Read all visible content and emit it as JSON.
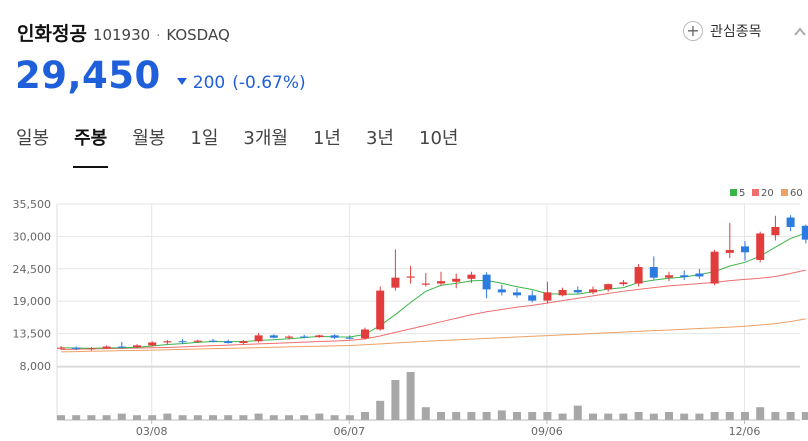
{
  "stock": {
    "name": "인화정공",
    "code": "101930",
    "separator": "·",
    "market": "KOSDAQ",
    "price": "29,450",
    "change": "200",
    "change_rate": "(-0.67%)",
    "direction": "down"
  },
  "watchlist": {
    "icon": "plus-icon",
    "label": "관심종목"
  },
  "expand_icon": "chevron-up-icon",
  "tabs": [
    {
      "label": "일봉",
      "active": false
    },
    {
      "label": "주봉",
      "active": true
    },
    {
      "label": "월봉",
      "active": false
    },
    {
      "label": "1일",
      "active": false
    },
    {
      "label": "3개월",
      "active": false
    },
    {
      "label": "1년",
      "active": false
    },
    {
      "label": "3년",
      "active": false
    },
    {
      "label": "10년",
      "active": false
    }
  ],
  "colors": {
    "up": "#e23d3d",
    "down": "#2b7be0",
    "ma5": "#3bb54a",
    "ma20": "#ef6e6e",
    "ma60": "#f0a064",
    "volume": "#a7a7a7",
    "grid": "#e6e6e6",
    "price": "#1f5fd9"
  },
  "chart_data": {
    "type": "candlestick",
    "y_ticks": [
      "35,500",
      "30,000",
      "24,500",
      "19,000",
      "13,500",
      "8,000"
    ],
    "ylim": [
      8000,
      35500
    ],
    "x_ticks": [
      {
        "label": "03/08",
        "index": 6
      },
      {
        "label": "06/07",
        "index": 19
      },
      {
        "label": "09/06",
        "index": 32
      },
      {
        "label": "12/06",
        "index": 45
      }
    ],
    "legend": [
      {
        "label": "5",
        "color": "#3bb54a"
      },
      {
        "label": "20",
        "color": "#ef6e6e"
      },
      {
        "label": "60",
        "color": "#f0a064"
      }
    ],
    "candles": [
      {
        "o": 11000,
        "h": 11400,
        "l": 10800,
        "c": 11100
      },
      {
        "o": 11100,
        "h": 11300,
        "l": 10700,
        "c": 10900
      },
      {
        "o": 10900,
        "h": 11200,
        "l": 10600,
        "c": 11000
      },
      {
        "o": 11000,
        "h": 11500,
        "l": 10900,
        "c": 11300
      },
      {
        "o": 11300,
        "h": 12100,
        "l": 11000,
        "c": 11200
      },
      {
        "o": 11200,
        "h": 11700,
        "l": 11000,
        "c": 11500
      },
      {
        "o": 11500,
        "h": 12200,
        "l": 11300,
        "c": 12000
      },
      {
        "o": 12000,
        "h": 12400,
        "l": 11700,
        "c": 12200
      },
      {
        "o": 12200,
        "h": 12600,
        "l": 11800,
        "c": 12100
      },
      {
        "o": 12100,
        "h": 12500,
        "l": 11900,
        "c": 12300
      },
      {
        "o": 12300,
        "h": 12600,
        "l": 12000,
        "c": 12200
      },
      {
        "o": 12200,
        "h": 12500,
        "l": 11800,
        "c": 11900
      },
      {
        "o": 11900,
        "h": 12400,
        "l": 11700,
        "c": 12200
      },
      {
        "o": 12200,
        "h": 13600,
        "l": 12000,
        "c": 13200
      },
      {
        "o": 13200,
        "h": 13400,
        "l": 12700,
        "c": 12800
      },
      {
        "o": 12800,
        "h": 13200,
        "l": 12500,
        "c": 13000
      },
      {
        "o": 13000,
        "h": 13300,
        "l": 12700,
        "c": 12900
      },
      {
        "o": 12900,
        "h": 13300,
        "l": 12800,
        "c": 13200
      },
      {
        "o": 13200,
        "h": 13400,
        "l": 12600,
        "c": 12800
      },
      {
        "o": 12800,
        "h": 13200,
        "l": 12500,
        "c": 12700
      },
      {
        "o": 12700,
        "h": 14500,
        "l": 12500,
        "c": 14200
      },
      {
        "o": 14200,
        "h": 21500,
        "l": 14000,
        "c": 20800
      },
      {
        "o": 21300,
        "h": 27800,
        "l": 20800,
        "c": 23000
      },
      {
        "o": 23000,
        "h": 25000,
        "l": 22000,
        "c": 23200
      },
      {
        "o": 21800,
        "h": 23800,
        "l": 21500,
        "c": 22000
      },
      {
        "o": 22000,
        "h": 24000,
        "l": 21700,
        "c": 22400
      },
      {
        "o": 22300,
        "h": 23700,
        "l": 21200,
        "c": 22800
      },
      {
        "o": 22800,
        "h": 24000,
        "l": 22100,
        "c": 23500
      },
      {
        "o": 23500,
        "h": 23900,
        "l": 19500,
        "c": 21000
      },
      {
        "o": 21000,
        "h": 21800,
        "l": 20000,
        "c": 20500
      },
      {
        "o": 20500,
        "h": 21200,
        "l": 19600,
        "c": 20000
      },
      {
        "o": 20000,
        "h": 20800,
        "l": 18800,
        "c": 19100
      },
      {
        "o": 19100,
        "h": 22300,
        "l": 18600,
        "c": 20500
      },
      {
        "o": 20000,
        "h": 21300,
        "l": 19800,
        "c": 20900
      },
      {
        "o": 20900,
        "h": 21500,
        "l": 20300,
        "c": 20500
      },
      {
        "o": 20500,
        "h": 21500,
        "l": 20200,
        "c": 21000
      },
      {
        "o": 21000,
        "h": 22000,
        "l": 20600,
        "c": 21900
      },
      {
        "o": 21900,
        "h": 22600,
        "l": 21600,
        "c": 22200
      },
      {
        "o": 22000,
        "h": 25300,
        "l": 21500,
        "c": 24800
      },
      {
        "o": 24800,
        "h": 26600,
        "l": 22700,
        "c": 23000
      },
      {
        "o": 23000,
        "h": 24000,
        "l": 22400,
        "c": 23400
      },
      {
        "o": 23400,
        "h": 24200,
        "l": 22600,
        "c": 23100
      },
      {
        "o": 23700,
        "h": 24500,
        "l": 22800,
        "c": 23200
      },
      {
        "o": 22000,
        "h": 27700,
        "l": 21700,
        "c": 27400
      },
      {
        "o": 27200,
        "h": 32300,
        "l": 26300,
        "c": 27700
      },
      {
        "o": 28300,
        "h": 29200,
        "l": 25900,
        "c": 27300
      },
      {
        "o": 26000,
        "h": 30800,
        "l": 25600,
        "c": 30500
      },
      {
        "o": 30200,
        "h": 33500,
        "l": 29300,
        "c": 31600
      },
      {
        "o": 33200,
        "h": 33600,
        "l": 30900,
        "c": 31600
      },
      {
        "o": 31800,
        "h": 32000,
        "l": 28800,
        "c": 29450
      }
    ],
    "ma5": [
      11100,
      11050,
      11000,
      11080,
      11100,
      11180,
      11400,
      11640,
      11800,
      12020,
      12160,
      12140,
      12140,
      12340,
      12460,
      12620,
      12820,
      13020,
      12940,
      12920,
      13360,
      14880,
      16730,
      18780,
      20680,
      21700,
      22020,
      22450,
      22540,
      22040,
      21450,
      20980,
      20270,
      20210,
      20200,
      20600,
      21060,
      21300,
      22180,
      22580,
      22900,
      23100,
      23510,
      24020,
      24980,
      25600,
      26660,
      28160,
      29650,
      30570
    ],
    "ma20": [
      10800,
      10850,
      10900,
      10950,
      11000,
      11050,
      11100,
      11150,
      11250,
      11350,
      11450,
      11550,
      11650,
      11750,
      11850,
      11950,
      12050,
      12150,
      12250,
      12350,
      12600,
      13100,
      13700,
      14300,
      14900,
      15500,
      16100,
      16700,
      17200,
      17600,
      18000,
      18300,
      18700,
      19100,
      19500,
      19900,
      20300,
      20700,
      21000,
      21300,
      21600,
      21800,
      22000,
      22200,
      22500,
      22700,
      22900,
      23200,
      23700,
      24300
    ],
    "ma60": [
      10400,
      10450,
      10500,
      10550,
      10600,
      10650,
      10700,
      10760,
      10820,
      10880,
      10940,
      11000,
      11060,
      11120,
      11180,
      11240,
      11300,
      11360,
      11420,
      11480,
      11600,
      11750,
      11900,
      12050,
      12200,
      12320,
      12440,
      12560,
      12680,
      12800,
      12920,
      13040,
      13160,
      13280,
      13400,
      13520,
      13640,
      13760,
      13880,
      14000,
      14120,
      14240,
      14360,
      14480,
      14600,
      14750,
      14950,
      15200,
      15550,
      16000
    ],
    "volume": [
      3,
      3,
      3,
      3,
      4,
      3,
      3,
      4,
      3,
      3,
      3,
      3,
      3,
      4,
      3,
      3,
      3,
      4,
      3,
      3,
      5,
      12,
      25,
      30,
      8,
      5,
      5,
      5,
      5,
      6,
      5,
      5,
      5,
      4,
      9,
      4,
      4,
      4,
      5,
      4,
      5,
      4,
      4,
      5,
      5,
      5,
      8,
      5,
      5,
      5
    ]
  }
}
